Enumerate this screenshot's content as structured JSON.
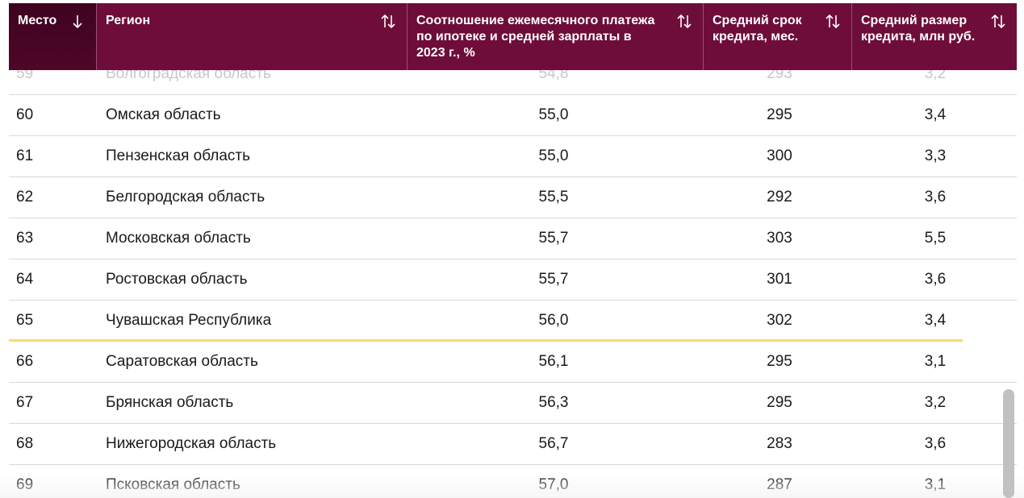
{
  "table": {
    "headers": [
      {
        "label": "Место",
        "sort_icon": "arrow-down-icon"
      },
      {
        "label": "Регион",
        "sort_icon": "sort-updown-icon"
      },
      {
        "label": "Соотношение ежемесячного платежа по ипотеке и средней зарплаты в 2023 г., %",
        "sort_icon": "sort-updown-icon"
      },
      {
        "label": "Средний срок кредита, мес.",
        "sort_icon": "sort-updown-icon"
      },
      {
        "label": "Средний размер кредита, млн руб.",
        "sort_icon": "sort-updown-icon"
      }
    ],
    "rows": [
      {
        "rank": "59",
        "region": "Волгоградская область",
        "ratio": "54,8",
        "term": "293",
        "size": "3,2"
      },
      {
        "rank": "60",
        "region": "Омская область",
        "ratio": "55,0",
        "term": "295",
        "size": "3,4"
      },
      {
        "rank": "61",
        "region": "Пензенская область",
        "ratio": "55,0",
        "term": "300",
        "size": "3,3"
      },
      {
        "rank": "62",
        "region": "Белгородская область",
        "ratio": "55,5",
        "term": "292",
        "size": "3,6"
      },
      {
        "rank": "63",
        "region": "Московская область",
        "ratio": "55,7",
        "term": "303",
        "size": "5,5"
      },
      {
        "rank": "64",
        "region": "Ростовская область",
        "ratio": "55,7",
        "term": "301",
        "size": "3,6"
      },
      {
        "rank": "65",
        "region": "Чувашская Республика",
        "ratio": "56,0",
        "term": "302",
        "size": "3,4"
      },
      {
        "rank": "66",
        "region": "Саратовская область",
        "ratio": "56,1",
        "term": "295",
        "size": "3,1"
      },
      {
        "rank": "67",
        "region": "Брянская область",
        "ratio": "56,3",
        "term": "295",
        "size": "3,2"
      },
      {
        "rank": "68",
        "region": "Нижегородская область",
        "ratio": "56,7",
        "term": "283",
        "size": "3,6"
      },
      {
        "rank": "69",
        "region": "Псковская область",
        "ratio": "57,0",
        "term": "287",
        "size": "3,1"
      }
    ]
  },
  "colors": {
    "header_bg": "#6e0d3a",
    "header_active_bg": "#4a0526",
    "highlight_line": "#f7dc6f"
  }
}
